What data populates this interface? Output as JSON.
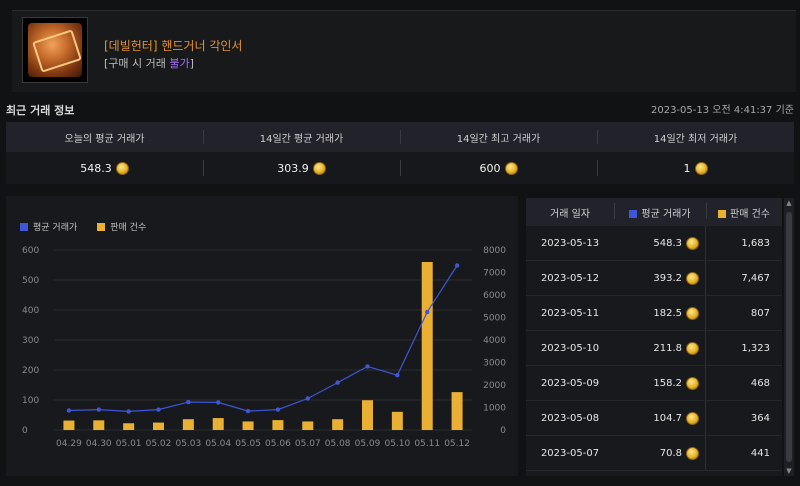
{
  "item": {
    "name": "[데빌헌터] 핸드거너 각인서",
    "trade_prefix": "[구매 시 거래 ",
    "trade_status": "불가",
    "trade_suffix": "]"
  },
  "section_title": "최근 거래 정보",
  "timestamp": "2023-05-13 오전 4:41:37 기준",
  "summary": {
    "headers": [
      "오늘의 평균 거래가",
      "14일간 평균 거래가",
      "14일간 최고 거래가",
      "14일간 최저 거래가"
    ],
    "values": [
      "548.3",
      "303.9",
      "600",
      "1"
    ]
  },
  "colors": {
    "avg_price": "#3d57d6",
    "sales": "#e9b033"
  },
  "chart_data": {
    "type": "bar+line",
    "categories": [
      "04.29",
      "04.30",
      "05.01",
      "05.02",
      "05.03",
      "05.04",
      "05.05",
      "05.06",
      "05.07",
      "05.08",
      "05.09",
      "05.10",
      "05.11",
      "05.12"
    ],
    "series": [
      {
        "name": "평균 거래가",
        "type": "line",
        "axis": "left",
        "values": [
          65,
          68,
          62,
          68,
          93,
          92,
          63,
          68,
          105,
          158,
          211.8,
          182.5,
          393.2,
          548.3
        ]
      },
      {
        "name": "판매 건수",
        "type": "bar",
        "axis": "right",
        "values": [
          420,
          430,
          300,
          330,
          480,
          530,
          380,
          440,
          380,
          480,
          1323,
          807,
          7467,
          1683
        ]
      }
    ],
    "y_left": {
      "ticks": [
        "0",
        "100",
        "200",
        "300",
        "400",
        "500",
        "600"
      ],
      "range": [
        0,
        600
      ]
    },
    "y_right": {
      "ticks": [
        "0",
        "1000",
        "2000",
        "3000",
        "4000",
        "5000",
        "6000",
        "7000",
        "8000"
      ],
      "range": [
        0,
        8000
      ]
    },
    "legend": [
      "평균 거래가",
      "판매 건수"
    ],
    "legend_position": "top-left"
  },
  "table": {
    "headers": {
      "date": "거래 일자",
      "avg": "평균 거래가",
      "count": "판매 건수"
    },
    "rows": [
      {
        "date": "2023-05-13",
        "avg": "548.3",
        "count": "1,683"
      },
      {
        "date": "2023-05-12",
        "avg": "393.2",
        "count": "7,467"
      },
      {
        "date": "2023-05-11",
        "avg": "182.5",
        "count": "807"
      },
      {
        "date": "2023-05-10",
        "avg": "211.8",
        "count": "1,323"
      },
      {
        "date": "2023-05-09",
        "avg": "158.2",
        "count": "468"
      },
      {
        "date": "2023-05-08",
        "avg": "104.7",
        "count": "364"
      },
      {
        "date": "2023-05-07",
        "avg": "70.8",
        "count": "441"
      }
    ]
  },
  "icons": {
    "coin": "gold-coin-icon",
    "scroll_up": "scroll-up-arrow-icon",
    "scroll_down": "scroll-down-arrow-icon"
  }
}
